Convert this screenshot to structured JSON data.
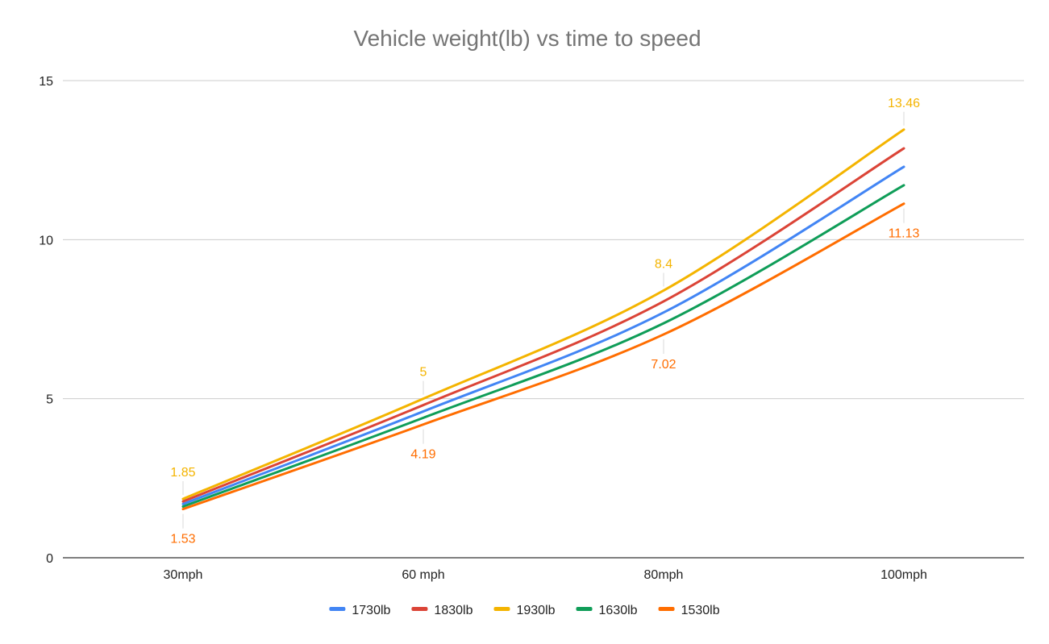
{
  "chart_data": {
    "type": "line",
    "title": "Vehicle weight(lb) vs time to speed",
    "xlabel": "",
    "ylabel": "",
    "categories": [
      "30mph",
      "60 mph",
      "80mph",
      "100mph"
    ],
    "ylim": [
      0,
      15
    ],
    "yticks": [
      0,
      5,
      10,
      15
    ],
    "grid": true,
    "smooth": true,
    "legend": "bottom",
    "series": [
      {
        "name": "1730lb",
        "color": "#4285F4",
        "values": [
          1.69,
          4.6,
          7.71,
          12.29
        ]
      },
      {
        "name": "1830lb",
        "color": "#DB4437",
        "values": [
          1.77,
          4.8,
          8.06,
          12.87
        ]
      },
      {
        "name": "1930lb",
        "color": "#F4B400",
        "values": [
          1.85,
          5,
          8.4,
          13.46
        ]
      },
      {
        "name": "1630lb",
        "color": "#0F9D58",
        "values": [
          1.61,
          4.4,
          7.37,
          11.71
        ]
      },
      {
        "name": "1530lb",
        "color": "#FF6D00",
        "values": [
          1.53,
          4.19,
          7.02,
          11.13
        ]
      }
    ],
    "data_labels": [
      {
        "series": "1930lb",
        "position": "above",
        "color": "#F4B400",
        "values": [
          "1.85",
          "5",
          "8.4",
          "13.46"
        ]
      },
      {
        "series": "1530lb",
        "position": "below",
        "color": "#FF6D00",
        "values": [
          "1.53",
          "4.19",
          "7.02",
          "11.13"
        ]
      }
    ]
  }
}
